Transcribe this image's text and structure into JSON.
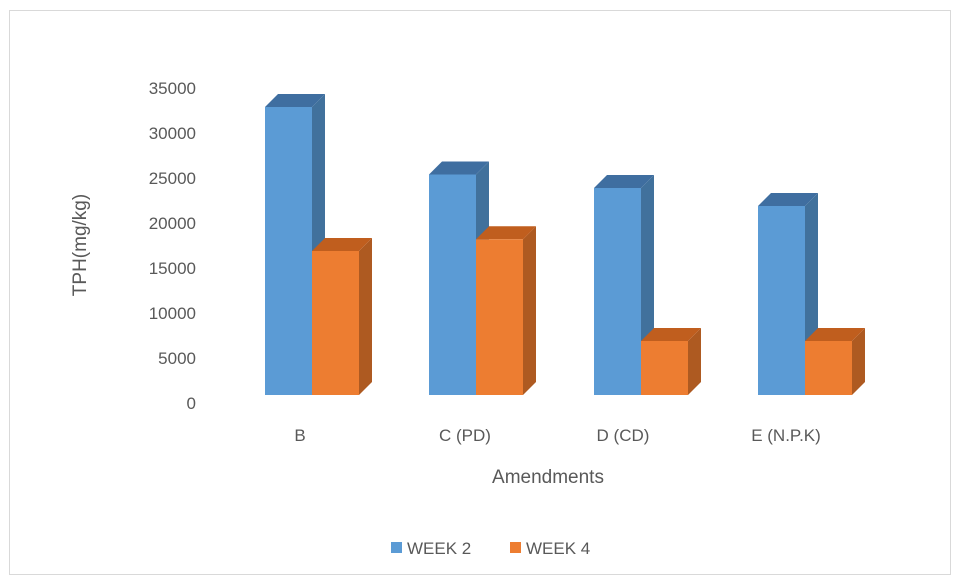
{
  "chart_data": {
    "type": "bar",
    "style": "3d-clustered-column",
    "title": "",
    "xlabel": "Amendments",
    "ylabel": "TPH(mg/kg)",
    "categories": [
      "B",
      "C (PD)",
      "D (CD)",
      "E (N.P.K)"
    ],
    "series": [
      {
        "name": "WEEK 2",
        "color": "#5B9BD5",
        "side_color": "#41719C",
        "top_color": "#3F6EA0",
        "values": [
          32000,
          24500,
          23000,
          21000
        ]
      },
      {
        "name": "WEEK 4",
        "color": "#ED7D31",
        "side_color": "#AE5A21",
        "top_color": "#C05E1E",
        "values": [
          16000,
          17300,
          6000,
          6000
        ]
      }
    ],
    "yticks": [
      "0",
      "5000",
      "10000",
      "15000",
      "20000",
      "25000",
      "30000",
      "35000"
    ],
    "ylim": [
      0,
      35000
    ],
    "grid": false,
    "legend_position": "bottom"
  }
}
